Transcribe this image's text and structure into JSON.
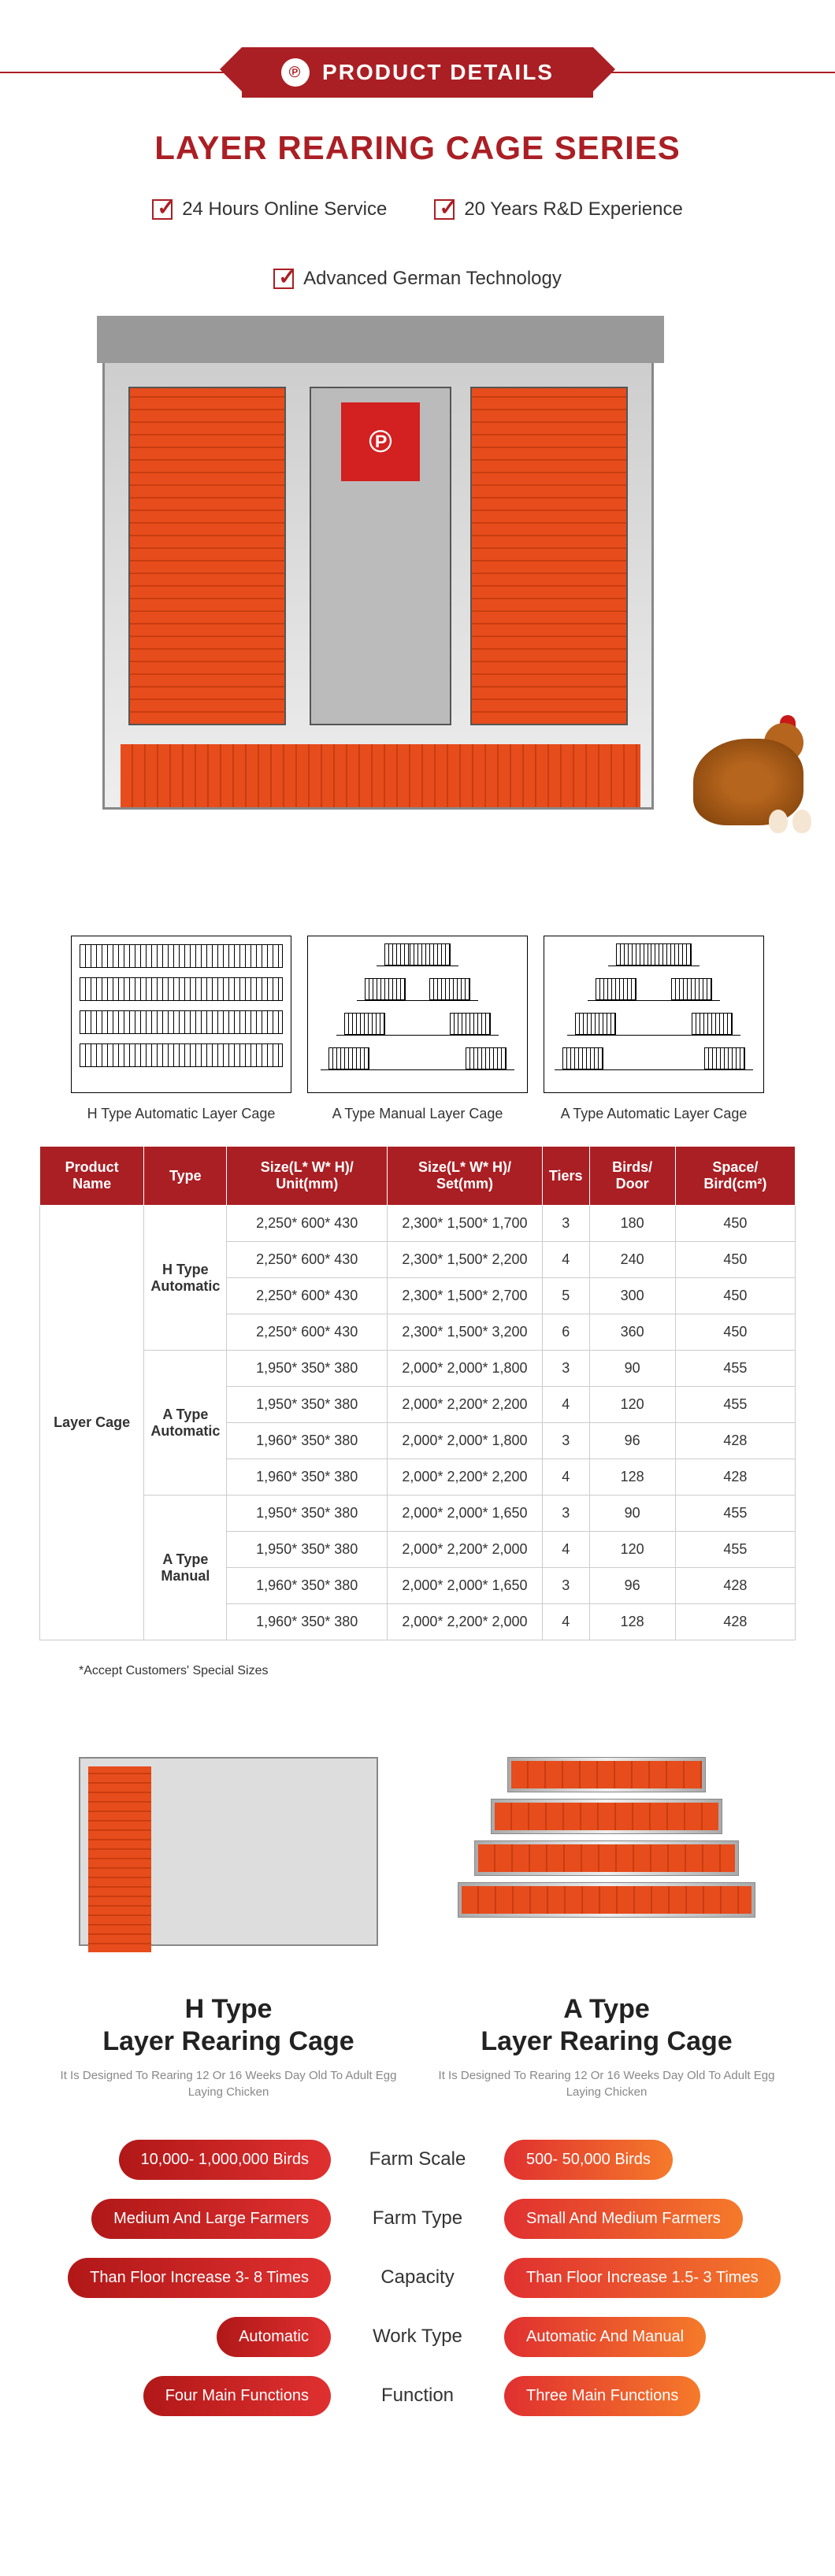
{
  "header": {
    "label": "PRODUCT DETAILS",
    "logo_char": "℗"
  },
  "title": "LAYER REARING CAGE SERIES",
  "features": [
    "24 Hours Online Service",
    "20 Years R&D Experience",
    "Advanced German Technology"
  ],
  "colors": {
    "brand_red": "#aa1f24",
    "accent_orange": "#e74c1c",
    "pill_red_start": "#b11818",
    "pill_red_end": "#e03030",
    "pill_orange_start": "#e03030",
    "pill_orange_end": "#f57a2a"
  },
  "diagrams": [
    {
      "caption": "H Type Automatic Layer Cage"
    },
    {
      "caption": "A Type Manual Layer Cage"
    },
    {
      "caption": "A Type Automatic Layer Cage"
    }
  ],
  "spec_table": {
    "columns": [
      "Product Name",
      "Type",
      "Size(L* W* H)/ Unit(mm)",
      "Size(L* W* H)/ Set(mm)",
      "Tiers",
      "Birds/ Door",
      "Space/ Bird(cm²)"
    ],
    "product_name": "Layer Cage",
    "groups": [
      {
        "type": "H Type Automatic",
        "rows": [
          {
            "unit": "2,250* 600* 430",
            "set": "2,300* 1,500* 1,700",
            "tiers": "3",
            "birds": "180",
            "space": "450"
          },
          {
            "unit": "2,250* 600* 430",
            "set": "2,300* 1,500* 2,200",
            "tiers": "4",
            "birds": "240",
            "space": "450"
          },
          {
            "unit": "2,250* 600* 430",
            "set": "2,300* 1,500* 2,700",
            "tiers": "5",
            "birds": "300",
            "space": "450"
          },
          {
            "unit": "2,250* 600* 430",
            "set": "2,300* 1,500* 3,200",
            "tiers": "6",
            "birds": "360",
            "space": "450"
          }
        ]
      },
      {
        "type": "A Type Automatic",
        "rows": [
          {
            "unit": "1,950* 350* 380",
            "set": "2,000* 2,000* 1,800",
            "tiers": "3",
            "birds": "90",
            "space": "455"
          },
          {
            "unit": "1,950* 350* 380",
            "set": "2,000* 2,200* 2,200",
            "tiers": "4",
            "birds": "120",
            "space": "455"
          },
          {
            "unit": "1,960* 350* 380",
            "set": "2,000* 2,000* 1,800",
            "tiers": "3",
            "birds": "96",
            "space": "428"
          },
          {
            "unit": "1,960* 350* 380",
            "set": "2,000* 2,200* 2,200",
            "tiers": "4",
            "birds": "128",
            "space": "428"
          }
        ]
      },
      {
        "type": "A Type Manual",
        "rows": [
          {
            "unit": "1,950* 350* 380",
            "set": "2,000* 2,000* 1,650",
            "tiers": "3",
            "birds": "90",
            "space": "455"
          },
          {
            "unit": "1,950* 350* 380",
            "set": "2,000* 2,200* 2,000",
            "tiers": "4",
            "birds": "120",
            "space": "455"
          },
          {
            "unit": "1,960* 350* 380",
            "set": "2,000* 2,000* 1,650",
            "tiers": "3",
            "birds": "96",
            "space": "428"
          },
          {
            "unit": "1,960* 350* 380",
            "set": "2,000* 2,200* 2,000",
            "tiers": "4",
            "birds": "128",
            "space": "428"
          }
        ]
      }
    ],
    "note": "*Accept Customers' Special Sizes"
  },
  "comparison": {
    "left": {
      "title_line1": "H Type",
      "title_line2": "Layer Rearing Cage",
      "subtitle": "It Is Designed To Rearing 12 Or 16 Weeks Day Old To Adult Egg Laying Chicken"
    },
    "right": {
      "title_line1": "A Type",
      "title_line2": "Layer Rearing Cage",
      "subtitle": "It Is Designed To Rearing 12 Or 16 Weeks Day Old To Adult Egg Laying Chicken"
    },
    "rows": [
      {
        "left": "10,000- 1,000,000 Birds",
        "mid": "Farm Scale",
        "right": "500- 50,000 Birds"
      },
      {
        "left": "Medium And Large Farmers",
        "mid": "Farm Type",
        "right": "Small And Medium Farmers"
      },
      {
        "left": "Than Floor Increase 3- 8 Times",
        "mid": "Capacity",
        "right": "Than Floor Increase 1.5- 3 Times"
      },
      {
        "left": "Automatic",
        "mid": "Work Type",
        "right": "Automatic And Manual"
      },
      {
        "left": "Four Main Functions",
        "mid": "Function",
        "right": "Three Main Functions"
      }
    ]
  }
}
